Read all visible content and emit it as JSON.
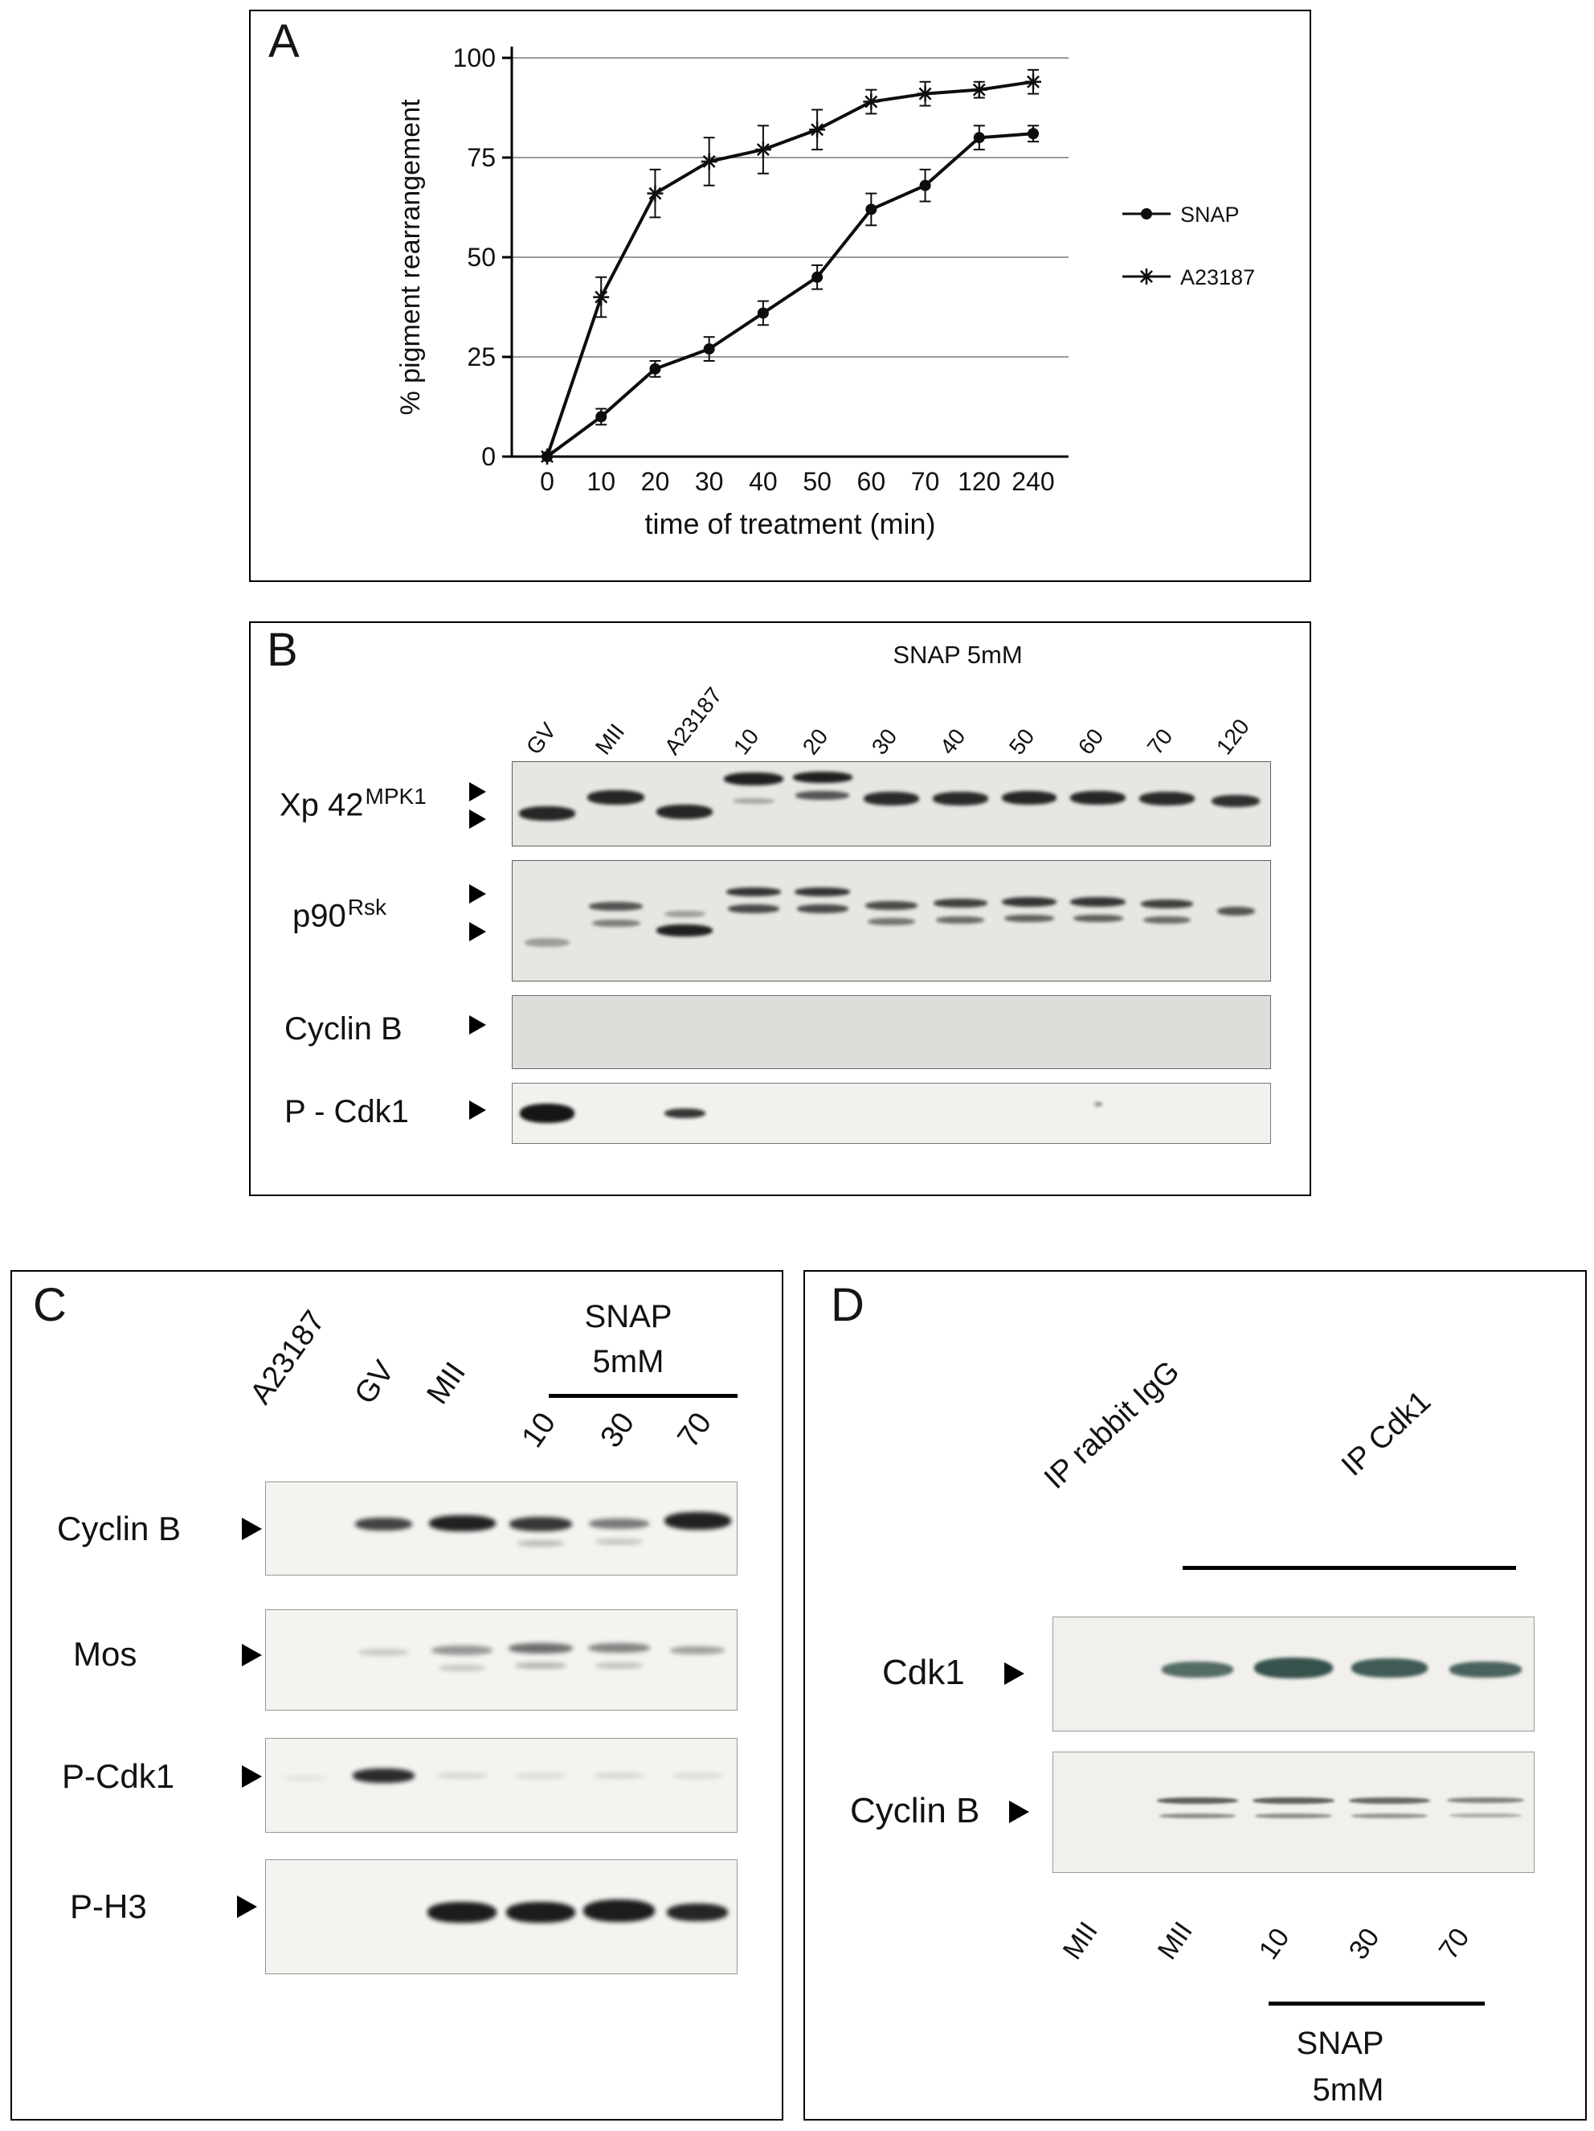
{
  "panel_a": {
    "label": "A"
  },
  "chart_data": {
    "type": "line",
    "title": "",
    "xlabel": "time of treatment (min)",
    "ylabel": "% pigment rearrangement",
    "categories": [
      "0",
      "10",
      "20",
      "30",
      "40",
      "50",
      "60",
      "70",
      "120",
      "240"
    ],
    "ylim": [
      0,
      100
    ],
    "yticks": [
      0,
      25,
      50,
      75,
      100
    ],
    "grid": true,
    "legend_position": "right",
    "series": [
      {
        "name": "SNAP",
        "marker": "circle",
        "values": [
          0,
          10,
          22,
          27,
          36,
          45,
          62,
          68,
          80,
          81
        ],
        "errors": [
          0,
          2,
          2,
          3,
          3,
          3,
          4,
          4,
          3,
          2
        ]
      },
      {
        "name": "A23187",
        "marker": "asterisk",
        "values": [
          0,
          40,
          66,
          74,
          77,
          82,
          89,
          91,
          92,
          94
        ],
        "errors": [
          0,
          5,
          6,
          6,
          6,
          5,
          3,
          3,
          2,
          3
        ]
      }
    ]
  },
  "panel_b": {
    "label": "B",
    "treatment_header": "SNAP 5mM",
    "lanes": [
      "GV",
      "MII",
      "A23187",
      "10",
      "20",
      "30",
      "40",
      "50",
      "60",
      "70",
      "120"
    ],
    "rows": {
      "xp42": {
        "base": "Xp 42",
        "sup": "MPK1"
      },
      "p90": {
        "base": "p90",
        "sup": "Rsk"
      },
      "cyclinb": {
        "base": "Cyclin B"
      },
      "pcdk1": {
        "base": "P - Cdk1"
      }
    },
    "blots": {
      "xp42": {
        "lanes": 11,
        "blur": 2,
        "bands": [
          [
            0,
            0.62,
            18,
            0.82,
            0.92
          ],
          [
            1,
            0.42,
            18,
            0.82,
            0.92
          ],
          [
            2,
            0.6,
            18,
            0.82,
            0.92
          ],
          [
            3,
            0.2,
            16,
            0.86,
            0.95
          ],
          [
            3,
            0.47,
            7,
            0.6,
            0.3
          ],
          [
            4,
            0.18,
            14,
            0.86,
            0.95
          ],
          [
            4,
            0.4,
            11,
            0.78,
            0.7
          ],
          [
            5,
            0.44,
            17,
            0.8,
            0.9
          ],
          [
            6,
            0.44,
            17,
            0.8,
            0.9
          ],
          [
            7,
            0.43,
            17,
            0.8,
            0.92
          ],
          [
            8,
            0.43,
            17,
            0.8,
            0.92
          ],
          [
            9,
            0.44,
            17,
            0.8,
            0.9
          ],
          [
            10,
            0.47,
            15,
            0.7,
            0.88
          ]
        ]
      },
      "p90": {
        "lanes": 11,
        "blur": 2,
        "bands": [
          [
            0,
            0.68,
            11,
            0.65,
            0.35
          ],
          [
            1,
            0.38,
            11,
            0.78,
            0.7
          ],
          [
            1,
            0.52,
            9,
            0.7,
            0.5
          ],
          [
            2,
            0.58,
            15,
            0.82,
            0.95
          ],
          [
            2,
            0.44,
            8,
            0.6,
            0.35
          ],
          [
            3,
            0.26,
            11,
            0.8,
            0.85
          ],
          [
            3,
            0.4,
            11,
            0.75,
            0.75
          ],
          [
            4,
            0.26,
            11,
            0.8,
            0.85
          ],
          [
            4,
            0.4,
            11,
            0.75,
            0.75
          ],
          [
            5,
            0.37,
            11,
            0.75,
            0.75
          ],
          [
            5,
            0.51,
            9,
            0.68,
            0.55
          ],
          [
            6,
            0.35,
            11,
            0.78,
            0.8
          ],
          [
            6,
            0.49,
            9,
            0.7,
            0.6
          ],
          [
            7,
            0.34,
            12,
            0.8,
            0.85
          ],
          [
            7,
            0.48,
            9,
            0.72,
            0.65
          ],
          [
            8,
            0.34,
            12,
            0.8,
            0.85
          ],
          [
            8,
            0.48,
            9,
            0.72,
            0.65
          ],
          [
            9,
            0.36,
            11,
            0.75,
            0.8
          ],
          [
            9,
            0.49,
            9,
            0.68,
            0.6
          ],
          [
            10,
            0.42,
            11,
            0.55,
            0.7
          ]
        ]
      },
      "cyclinb": {
        "lanes": 11,
        "blur": 4,
        "color": "#57565​4",
        "bands": [
          [
            0,
            0.45,
            13,
            0.9,
            0.22
          ],
          [
            1,
            0.45,
            14,
            0.9,
            0.5
          ],
          [
            2,
            0.45,
            13,
            0.9,
            0.35
          ],
          [
            3,
            0.45,
            14,
            0.9,
            0.5
          ],
          [
            4,
            0.44,
            14,
            0.9,
            0.55
          ],
          [
            5,
            0.45,
            14,
            0.9,
            0.5
          ],
          [
            6,
            0.45,
            14,
            0.9,
            0.5
          ],
          [
            7,
            0.44,
            14,
            0.9,
            0.55
          ],
          [
            8,
            0.45,
            14,
            0.9,
            0.52
          ],
          [
            9,
            0.45,
            14,
            0.9,
            0.5
          ],
          [
            10,
            0.46,
            13,
            0.85,
            0.45
          ]
        ]
      },
      "pcdk1": {
        "lanes": 11,
        "blur": 2,
        "bands": [
          [
            0,
            0.5,
            24,
            0.8,
            1
          ],
          [
            2,
            0.5,
            12,
            0.6,
            0.85
          ],
          [
            8,
            0.35,
            5,
            0.12,
            0.5
          ]
        ]
      }
    }
  },
  "panel_c": {
    "label": "C",
    "lane_a23187": "A23187",
    "lane_gv": "GV",
    "lane_mii": "MII",
    "snap_line1": "SNAP",
    "snap_line2": "5mM",
    "time_10": "10",
    "time_30": "30",
    "time_70": "70",
    "rows": {
      "cyclinb": "Cyclin B",
      "mos": "Mos",
      "pcdk1": "P-Cdk1",
      "ph3": "P-H3"
    },
    "blots": {
      "cyclinb": {
        "lanes": 6,
        "blur": 3,
        "bands": [
          [
            1,
            0.45,
            16,
            0.72,
            0.8
          ],
          [
            2,
            0.44,
            20,
            0.85,
            0.95
          ],
          [
            3,
            0.45,
            18,
            0.8,
            0.85
          ],
          [
            3,
            0.66,
            8,
            0.6,
            0.25
          ],
          [
            4,
            0.45,
            13,
            0.76,
            0.55
          ],
          [
            4,
            0.64,
            8,
            0.6,
            0.2
          ],
          [
            5,
            0.42,
            22,
            0.85,
            0.95
          ]
        ]
      },
      "mos": {
        "lanes": 6,
        "blur": 3,
        "bands": [
          [
            1,
            0.42,
            9,
            0.65,
            0.18
          ],
          [
            2,
            0.4,
            12,
            0.78,
            0.42
          ],
          [
            2,
            0.58,
            8,
            0.6,
            0.2
          ],
          [
            3,
            0.38,
            13,
            0.82,
            0.6
          ],
          [
            3,
            0.56,
            8,
            0.65,
            0.28
          ],
          [
            4,
            0.38,
            12,
            0.78,
            0.5
          ],
          [
            4,
            0.56,
            8,
            0.6,
            0.22
          ],
          [
            5,
            0.4,
            10,
            0.7,
            0.38
          ]
        ]
      },
      "pcdk1": {
        "lanes": 6,
        "blur": 3,
        "bands": [
          [
            0,
            0.42,
            8,
            0.6,
            0.06
          ],
          [
            1,
            0.4,
            18,
            0.78,
            0.9
          ],
          [
            2,
            0.4,
            8,
            0.65,
            0.12
          ],
          [
            3,
            0.4,
            8,
            0.65,
            0.1
          ],
          [
            4,
            0.4,
            8,
            0.65,
            0.12
          ],
          [
            5,
            0.4,
            8,
            0.65,
            0.1
          ]
        ]
      },
      "ph3": {
        "lanes": 6,
        "blur": 3,
        "bands": [
          [
            2,
            0.46,
            26,
            0.88,
            0.97
          ],
          [
            3,
            0.46,
            26,
            0.88,
            0.97
          ],
          [
            4,
            0.45,
            28,
            0.92,
            0.97
          ],
          [
            5,
            0.46,
            22,
            0.78,
            0.93
          ]
        ]
      }
    }
  },
  "panel_d": {
    "label": "D",
    "ip_igg": "IP rabbit IgG",
    "ip_cdk1": "IP Cdk1",
    "rows": {
      "cdk1": "Cdk1",
      "cyclinb": "Cyclin B"
    },
    "lane_1": "MII",
    "lane_2": "MII",
    "lane_3": "10",
    "lane_4": "30",
    "lane_5": "70",
    "snap_line1": "SNAP",
    "snap_line2": "5mM",
    "blots": {
      "cdk1": {
        "lanes": 5,
        "blur": 2,
        "color": "#2d4a45",
        "bands": [
          [
            1,
            0.46,
            20,
            0.75,
            0.8
          ],
          [
            2,
            0.45,
            26,
            0.82,
            0.95
          ],
          [
            3,
            0.45,
            24,
            0.8,
            0.9
          ],
          [
            4,
            0.46,
            20,
            0.75,
            0.85
          ]
        ]
      },
      "cyclinb": {
        "lanes": 5,
        "blur": 1.5,
        "color": "#3a3a38",
        "bands": [
          [
            1,
            0.4,
            8,
            0.85,
            0.8
          ],
          [
            1,
            0.53,
            6,
            0.8,
            0.55
          ],
          [
            2,
            0.4,
            8,
            0.85,
            0.8
          ],
          [
            2,
            0.53,
            6,
            0.8,
            0.55
          ],
          [
            3,
            0.4,
            8,
            0.85,
            0.75
          ],
          [
            3,
            0.53,
            6,
            0.8,
            0.5
          ],
          [
            4,
            0.4,
            7,
            0.8,
            0.6
          ],
          [
            4,
            0.53,
            5,
            0.75,
            0.4
          ]
        ]
      }
    }
  }
}
